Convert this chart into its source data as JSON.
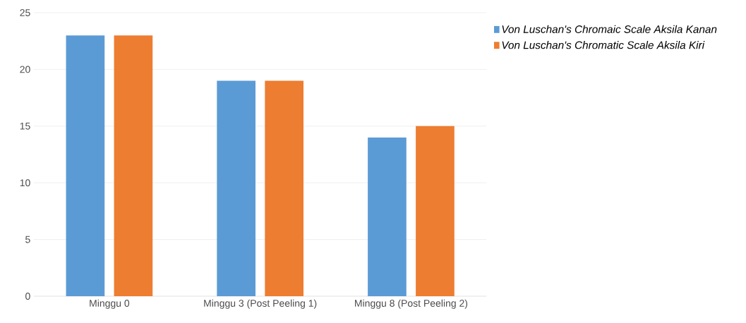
{
  "chart_data": {
    "type": "bar",
    "categories": [
      "Minggu 0",
      "Minggu 3 (Post Peeling 1)",
      "Minggu 8 (Post Peeling 2)"
    ],
    "series": [
      {
        "name": "Von Luschan's Chromaic Scale Aksila Kanan",
        "color": "#5b9bd5",
        "values": [
          23,
          19,
          14
        ]
      },
      {
        "name": "Von Luschan's Chromatic Scale Aksila Kiri",
        "color": "#ed7d31",
        "values": [
          23,
          19,
          15
        ]
      }
    ],
    "ylim": [
      0,
      25
    ],
    "yticks": [
      0,
      5,
      10,
      15,
      20,
      25
    ],
    "grid": "y",
    "legend": "top right"
  }
}
